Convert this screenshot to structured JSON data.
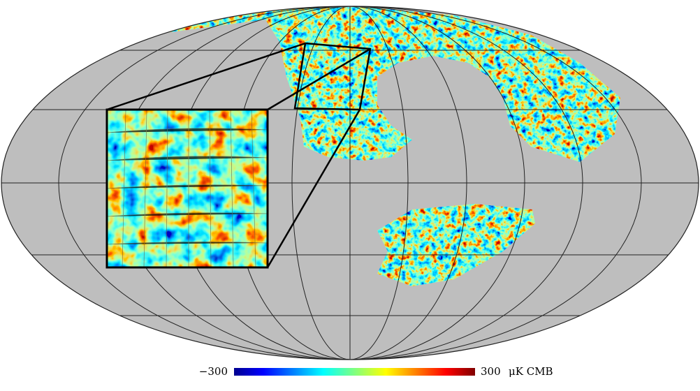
{
  "colorbar": {
    "min_label": "−300",
    "max_label": "300",
    "unit": "μK CMB"
  }
}
